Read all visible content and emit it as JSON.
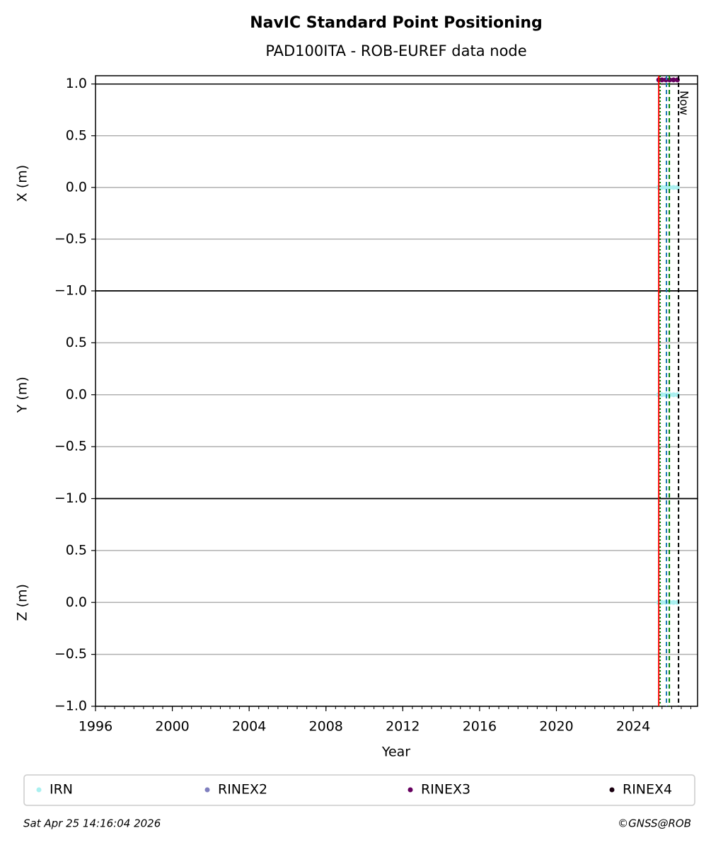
{
  "chart_data": {
    "type": "scatter",
    "title": "NavIC Standard Point Positioning",
    "subtitle": "PAD100ITA - ROB-EUREF data node",
    "xlabel": "Year",
    "xlim": [
      1996,
      2027.35
    ],
    "xticks": [
      1996,
      2000,
      2004,
      2008,
      2012,
      2016,
      2020,
      2024
    ],
    "vlines": [
      {
        "x": 2025.33,
        "color": "#ff0000",
        "style": "solid"
      },
      {
        "x": 2025.4,
        "color": "#008000",
        "style": "dotted"
      },
      {
        "x": 2025.73,
        "color": "#1f77b4",
        "style": "dashed"
      },
      {
        "x": 2025.88,
        "color": "#008000",
        "style": "dashed"
      },
      {
        "x": 2026.36,
        "color": "#000000",
        "style": "dashed"
      }
    ],
    "annotation": {
      "text": "Now",
      "x": 2026.36
    },
    "legend": [
      {
        "name": "IRN",
        "color": "#aaf0f0"
      },
      {
        "name": "RINEX2",
        "color": "#7f7fbf"
      },
      {
        "name": "RINEX3",
        "color": "#66005f"
      },
      {
        "name": "RINEX4",
        "color": "#1a0010"
      }
    ],
    "panels": [
      {
        "ylabel": "X (m)",
        "ylim": [
          -1,
          1.08
        ],
        "reference_line": 1,
        "yticks": [
          {
            "value": -1,
            "label": "−1.0"
          },
          {
            "value": -0.5,
            "label": "−0.5"
          },
          {
            "value": 0,
            "label": "0.0"
          },
          {
            "value": 0.5,
            "label": "0.5"
          },
          {
            "value": 1,
            "label": "1.0"
          }
        ],
        "series": [
          {
            "color": "#aaf0f0",
            "x": [
              2025.33,
              2025.5,
              2025.7,
              2025.9,
              2026.1,
              2026.3
            ],
            "values": [
              0,
              0,
              0,
              0,
              0,
              0
            ]
          },
          {
            "color": "#66005f",
            "x": [
              2025.33,
              2025.5,
              2025.7,
              2025.9,
              2026.1,
              2026.3
            ],
            "values": [
              1.04,
              1.04,
              1.04,
              1.04,
              1.04,
              1.04
            ]
          }
        ]
      },
      {
        "ylabel": "Y (m)",
        "ylim": [
          -1,
          1
        ],
        "yticks": [
          {
            "value": -1,
            "label": "−1.0"
          },
          {
            "value": -0.5,
            "label": "−0.5"
          },
          {
            "value": 0,
            "label": "0.0"
          },
          {
            "value": 0.5,
            "label": "0.5"
          }
        ],
        "series": [
          {
            "color": "#aaf0f0",
            "x": [
              2025.33,
              2025.5,
              2025.7,
              2025.9,
              2026.1,
              2026.3
            ],
            "values": [
              0,
              0,
              0,
              0,
              0,
              0
            ]
          }
        ]
      },
      {
        "ylabel": "Z (m)",
        "ylim": [
          -1,
          1
        ],
        "yticks": [
          {
            "value": -1,
            "label": "−1.0"
          },
          {
            "value": -0.5,
            "label": "−0.5"
          },
          {
            "value": 0,
            "label": "0.0"
          },
          {
            "value": 0.5,
            "label": "0.5"
          }
        ],
        "series": [
          {
            "color": "#aaf0f0",
            "x": [
              2025.33,
              2025.5,
              2025.7,
              2025.9,
              2026.1,
              2026.3
            ],
            "values": [
              0,
              0,
              0,
              0,
              0,
              0
            ]
          }
        ]
      }
    ],
    "date": "Sat Apr 25 14:16:04 2026",
    "credit": "©GNSS@ROB"
  }
}
